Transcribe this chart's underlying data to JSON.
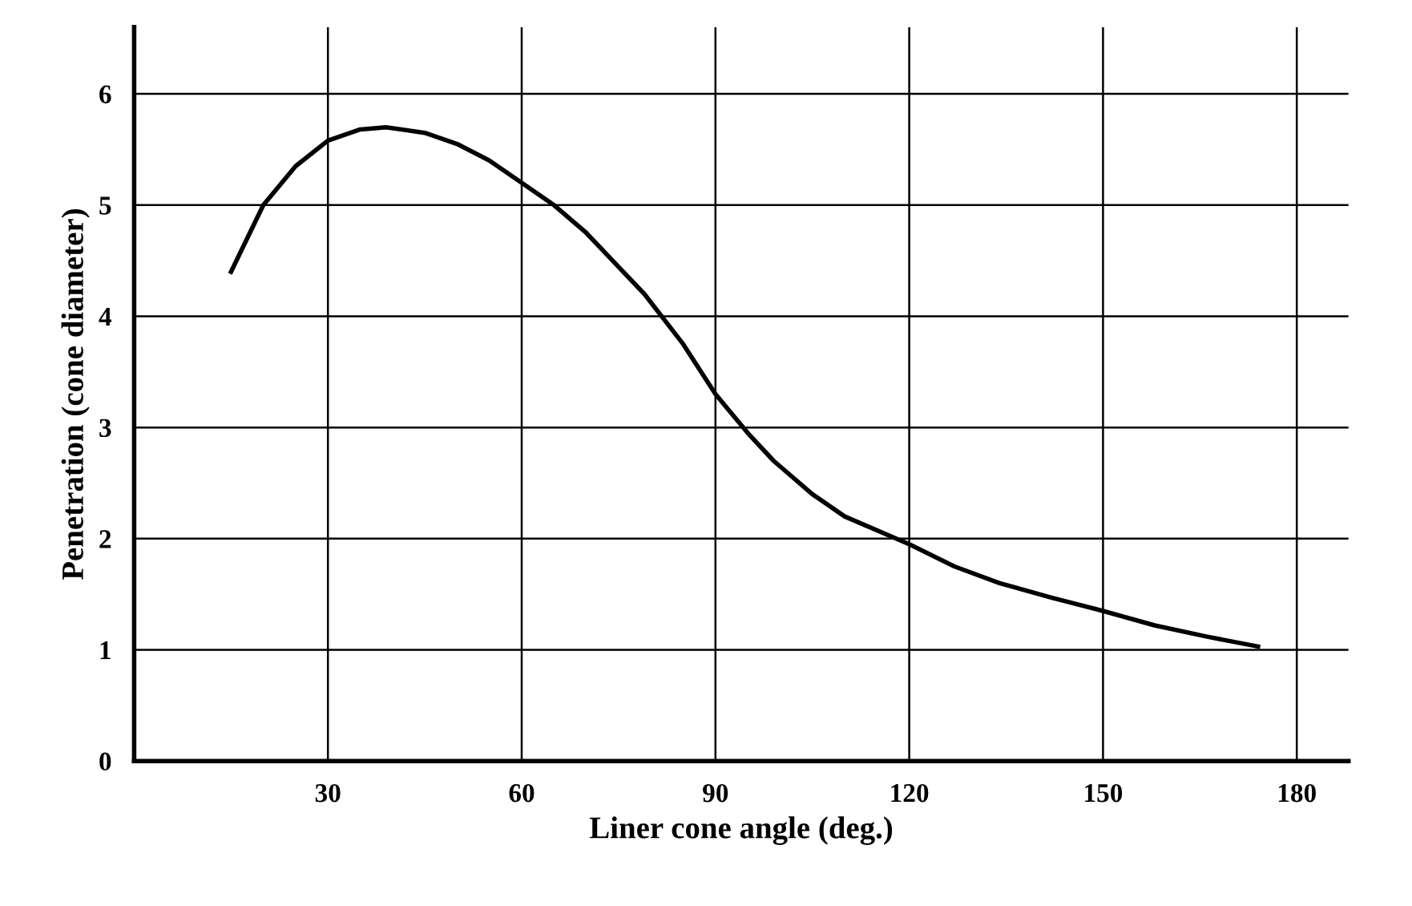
{
  "chart_data": {
    "type": "line",
    "xlabel": "Liner cone angle (deg.)",
    "ylabel": "Penetration (cone diameter)",
    "x": [
      15,
      20,
      25,
      30,
      35,
      39,
      45,
      50,
      55,
      60,
      65,
      70,
      79,
      85,
      90,
      95,
      99,
      105,
      110,
      120,
      127,
      134,
      142,
      150,
      158,
      166,
      174
    ],
    "series": [
      {
        "color": "#000000",
        "values": [
          4.4,
          5.0,
          5.35,
          5.58,
          5.68,
          5.7,
          5.65,
          5.55,
          5.4,
          5.2,
          5.0,
          4.75,
          4.2,
          3.75,
          3.3,
          2.95,
          2.7,
          2.4,
          2.2,
          1.95,
          1.75,
          1.6,
          1.47,
          1.35,
          1.22,
          1.12,
          1.03
        ]
      }
    ],
    "xlim": [
      0,
      188
    ],
    "ylim": [
      0,
      6.6
    ],
    "xticks": [
      30,
      60,
      90,
      120,
      150,
      180
    ],
    "yticks": [
      0,
      1,
      2,
      3,
      4,
      5,
      6
    ],
    "grid": true,
    "marker": "none",
    "line_style": "solid"
  }
}
